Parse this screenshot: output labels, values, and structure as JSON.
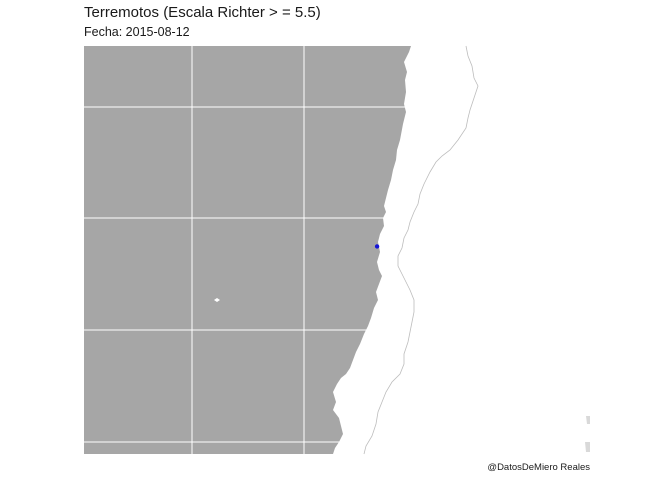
{
  "title": "Terremotos (Escala Richter > = 5.5)",
  "subtitle": "Fecha: 2015-08-12",
  "caption": "@DatosDeMiero Reales",
  "colors": {
    "ocean": "#a6a6a6",
    "land": "#ffffff",
    "grid": "#ffffff",
    "border": "#bdbdbd",
    "quake": "#1515d6"
  },
  "quakes": [
    {
      "name": "quake-point",
      "lat": -31.6,
      "lon": -71.6
    }
  ]
}
